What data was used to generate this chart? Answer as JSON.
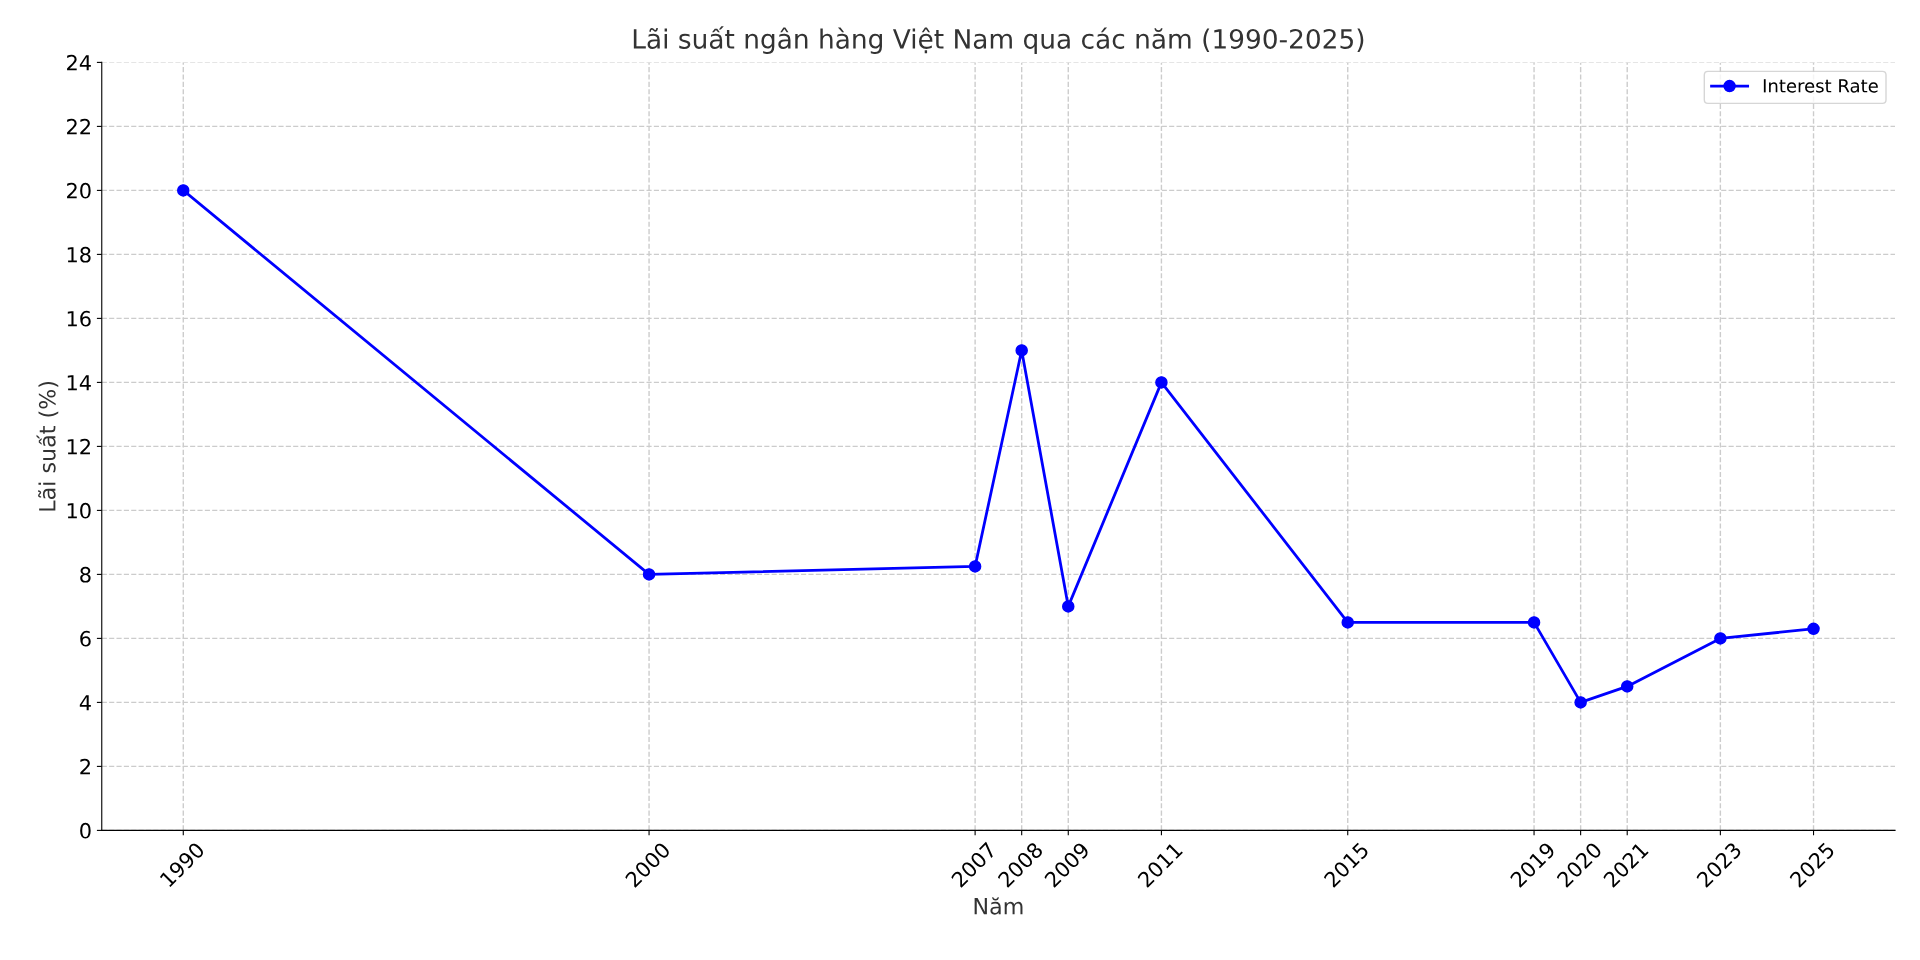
{
  "chart_data": {
    "type": "line",
    "title": "Lãi suất ngân hàng Việt Nam qua các năm (1990-2025)",
    "xlabel": "Năm",
    "ylabel": "Lãi suất (%)",
    "x": [
      1990,
      2000,
      2007,
      2008,
      2009,
      2011,
      2015,
      2019,
      2020,
      2021,
      2023,
      2025
    ],
    "series": [
      {
        "name": "Interest Rate",
        "color": "#0000ff",
        "values": [
          20,
          8,
          8.25,
          15,
          7,
          14,
          6.5,
          6.5,
          4,
          4.5,
          6,
          6.3
        ]
      }
    ],
    "xlim": [
      1988.25,
      2026.75
    ],
    "xticks": [
      1990,
      2000,
      2007,
      2008,
      2009,
      2011,
      2015,
      2019,
      2020,
      2021,
      2023,
      2025
    ],
    "ylim": [
      0,
      24
    ],
    "yticks": [
      0,
      2,
      4,
      6,
      8,
      10,
      12,
      14,
      16,
      18,
      20,
      22,
      24
    ],
    "grid": true,
    "legend": "top right",
    "marker": "circle",
    "line_style": "solid"
  }
}
